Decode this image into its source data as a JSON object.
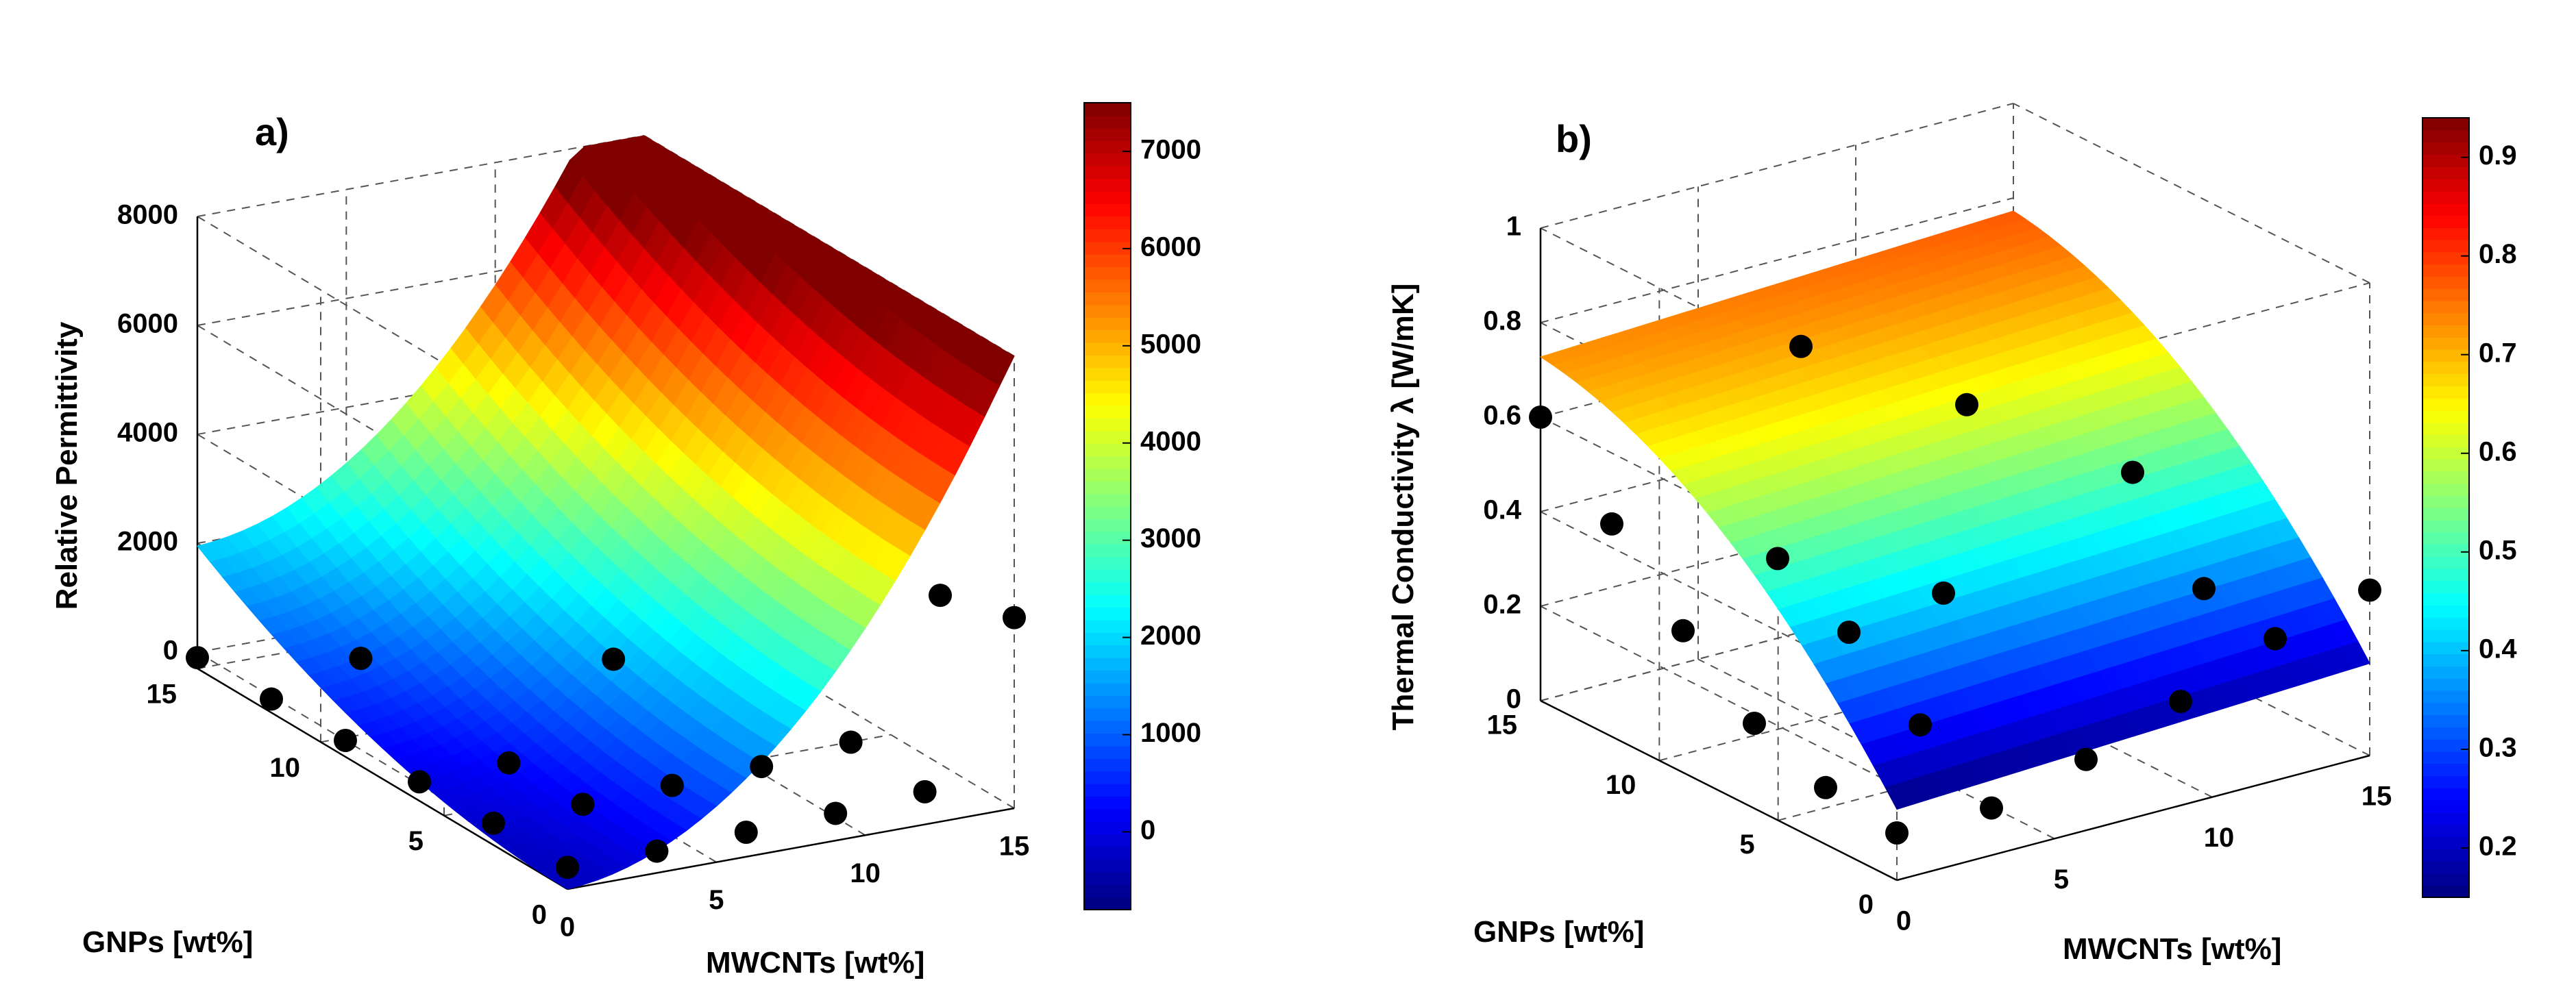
{
  "chart_data": [
    {
      "type": "surface3d",
      "panel_label": "a)",
      "xlabel": "MWCNTs [wt%]",
      "ylabel": "GNPs [wt%]",
      "zlabel": "Relative Permittivity",
      "x_ticks": [
        "0",
        "5",
        "10",
        "15"
      ],
      "y_ticks": [
        "0",
        "5",
        "10",
        "15"
      ],
      "z_ticks": [
        "0",
        "2000",
        "4000",
        "6000",
        "8000"
      ],
      "xlim": [
        0,
        15
      ],
      "ylim": [
        0,
        15
      ],
      "zlim": [
        -300,
        8000
      ],
      "surface_model": {
        "form": "z = c0 + cx*x + cy*y + cxx*x^2 + cyy*y^2 + cxy*x*y",
        "c0": -300,
        "cx": 30,
        "cy": 0,
        "cxx": 35,
        "cyy": 10,
        "cxy": 0
      },
      "colorbar": {
        "ticks": [
          "0",
          "1000",
          "2000",
          "3000",
          "4000",
          "5000",
          "6000",
          "7000"
        ],
        "range": [
          -800,
          7500
        ]
      },
      "points": [
        {
          "x": 0,
          "y": 15,
          "z": -100
        },
        {
          "x": 0,
          "y": 12,
          "z": -50
        },
        {
          "x": 0,
          "y": 9,
          "z": 0
        },
        {
          "x": 0,
          "y": 6,
          "z": 50
        },
        {
          "x": 0,
          "y": 3,
          "z": 100
        },
        {
          "x": 0,
          "y": 0,
          "z": 100
        },
        {
          "x": 3,
          "y": 0,
          "z": 100
        },
        {
          "x": 6,
          "y": 0,
          "z": 150
        },
        {
          "x": 9,
          "y": 0,
          "z": 200
        },
        {
          "x": 12,
          "y": 0,
          "z": 300
        },
        {
          "x": 15,
          "y": 0,
          "z": 3200
        },
        {
          "x": 3,
          "y": 3,
          "z": 150
        },
        {
          "x": 3,
          "y": 6,
          "z": 100
        },
        {
          "x": 6,
          "y": 3,
          "z": 200
        },
        {
          "x": 9,
          "y": 3,
          "z": 250
        },
        {
          "x": 3,
          "y": 12,
          "z": 400
        },
        {
          "x": 9,
          "y": 9,
          "z": 600
        },
        {
          "x": 15,
          "y": 3,
          "z": 2800
        },
        {
          "x": 12,
          "y": 3,
          "z": 400
        }
      ]
    },
    {
      "type": "surface3d",
      "panel_label": "b)",
      "xlabel": "MWCNTs [wt%]",
      "ylabel": "GNPs [wt%]",
      "zlabel": "Thermal Conductivity  λ [W/mK]",
      "x_ticks": [
        "0",
        "5",
        "10",
        "15"
      ],
      "y_ticks": [
        "0",
        "5",
        "10",
        "15"
      ],
      "z_ticks": [
        "0",
        "0.2",
        "0.4",
        "0.6",
        "0.8",
        "1"
      ],
      "xlim": [
        0,
        15
      ],
      "ylim": [
        0,
        15
      ],
      "zlim": [
        0,
        1
      ],
      "surface_model": {
        "form": "z = c0 + cx*x + cy*y + cxx*x^2 + cyy*y^2 + cxy*x*y",
        "c0": 0.15,
        "cx": 0.003,
        "cy": 0.07,
        "cxx": 0.0,
        "cyy": -0.0021,
        "cxy": 0.0
      },
      "colorbar": {
        "ticks": [
          "0.2",
          "0.3",
          "0.4",
          "0.5",
          "0.6",
          "0.7",
          "0.8",
          "0.9"
        ],
        "range": [
          0.15,
          0.94
        ]
      },
      "points": [
        {
          "x": 0,
          "y": 15,
          "z": 0.6
        },
        {
          "x": 0,
          "y": 12,
          "z": 0.45
        },
        {
          "x": 0,
          "y": 9,
          "z": 0.3
        },
        {
          "x": 0,
          "y": 6,
          "z": 0.18
        },
        {
          "x": 0,
          "y": 3,
          "z": 0.12
        },
        {
          "x": 0,
          "y": 0,
          "z": 0.1
        },
        {
          "x": 3,
          "y": 0,
          "z": 0.1
        },
        {
          "x": 6,
          "y": 0,
          "z": 0.15
        },
        {
          "x": 9,
          "y": 0,
          "z": 0.22
        },
        {
          "x": 12,
          "y": 0,
          "z": 0.3
        },
        {
          "x": 15,
          "y": 0,
          "z": 0.35
        },
        {
          "x": 3,
          "y": 3,
          "z": 0.2
        },
        {
          "x": 3,
          "y": 6,
          "z": 0.32
        },
        {
          "x": 3,
          "y": 9,
          "z": 0.4
        },
        {
          "x": 6,
          "y": 6,
          "z": 0.35
        },
        {
          "x": 6,
          "y": 12,
          "z": 0.72
        },
        {
          "x": 9,
          "y": 9,
          "z": 0.62
        },
        {
          "x": 12,
          "y": 6,
          "z": 0.5
        },
        {
          "x": 12,
          "y": 3,
          "z": 0.33
        }
      ]
    }
  ]
}
